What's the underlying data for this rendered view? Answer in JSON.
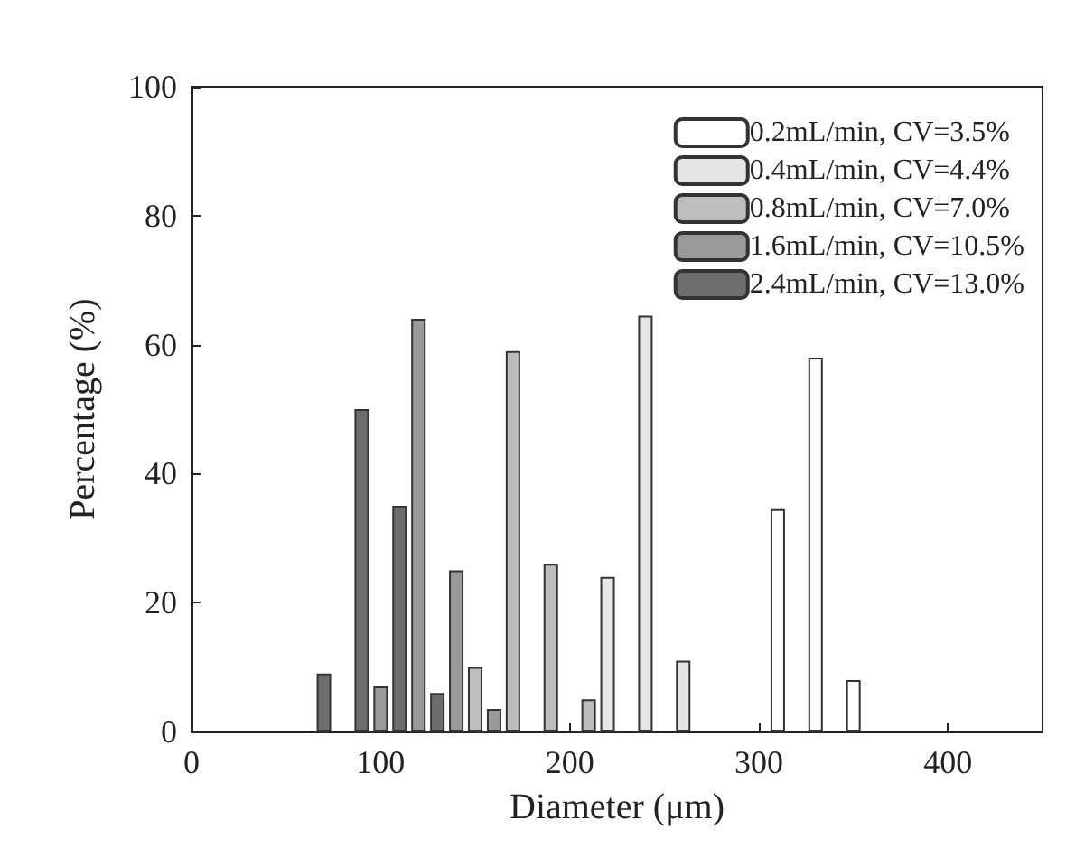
{
  "chart_data": {
    "type": "bar",
    "xlabel": "Diameter (μm)",
    "ylabel": "Percentage (%)",
    "xlim": [
      0,
      450
    ],
    "xticks": [
      0,
      100,
      200,
      300,
      400
    ],
    "ylim": [
      0,
      100
    ],
    "yticks": [
      0,
      20,
      40,
      60,
      80,
      100
    ],
    "grid": false,
    "legend": "top right",
    "series": [
      {
        "name": "0.2mL/min, CV=3.5%",
        "color": "#ffffff",
        "x": [
          310,
          330,
          350
        ],
        "values": [
          34.5,
          58,
          8
        ]
      },
      {
        "name": "0.4mL/min, CV=4.4%",
        "color": "#e6e6e6",
        "x": [
          220,
          240,
          260
        ],
        "values": [
          24,
          64.5,
          11
        ]
      },
      {
        "name": "0.8mL/min, CV=7.0%",
        "color": "#bdbdbd",
        "x": [
          150,
          170,
          190,
          210
        ],
        "values": [
          10,
          59,
          26,
          5
        ]
      },
      {
        "name": "1.6mL/min, CV=10.5%",
        "color": "#9a9a9a",
        "x": [
          100,
          120,
          140,
          160
        ],
        "values": [
          7,
          64,
          25,
          3.5
        ]
      },
      {
        "name": "2.4mL/min, CV=13.0%",
        "color": "#6e6e6e",
        "x": [
          70,
          90,
          110,
          130
        ],
        "values": [
          9,
          50,
          35,
          6
        ]
      }
    ]
  }
}
